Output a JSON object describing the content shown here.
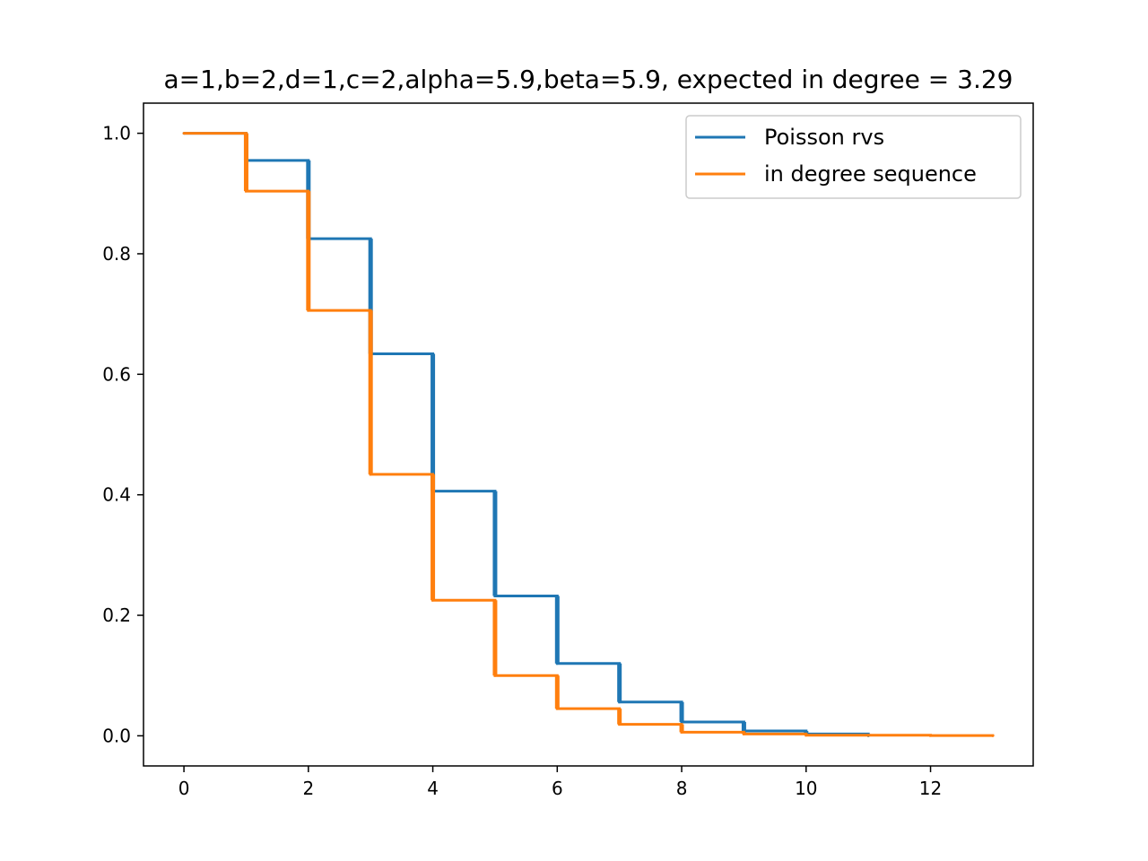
{
  "chart_data": {
    "type": "line",
    "title": "a=1,b=2,d=1,c=2,alpha=5.9,beta=5.9, expected in degree = 3.29",
    "xlabel": "",
    "ylabel": "",
    "xlim": [
      -0.65,
      13.65
    ],
    "ylim": [
      -0.05,
      1.05
    ],
    "x_ticks": [
      0,
      2,
      4,
      6,
      8,
      10,
      12
    ],
    "x_tick_labels": [
      "0",
      "2",
      "4",
      "6",
      "8",
      "10",
      "12"
    ],
    "y_ticks": [
      0.0,
      0.2,
      0.4,
      0.6,
      0.8,
      1.0
    ],
    "y_tick_labels": [
      "0.0",
      "0.2",
      "0.4",
      "0.6",
      "0.8",
      "1.0"
    ],
    "grid": false,
    "legend_position": "top-right",
    "series": [
      {
        "name": "Poisson rvs",
        "color": "#1f77b4",
        "x": [
          0,
          1,
          2,
          3,
          4,
          5,
          6,
          7,
          8,
          9,
          10,
          11
        ],
        "y": [
          1.0,
          0.955,
          0.825,
          0.634,
          0.406,
          0.232,
          0.12,
          0.056,
          0.023,
          0.008,
          0.003,
          0.0
        ]
      },
      {
        "name": "in degree sequence",
        "color": "#ff7f0e",
        "x": [
          0,
          1,
          2,
          3,
          4,
          5,
          6,
          7,
          8,
          9,
          10,
          11,
          12,
          13
        ],
        "y": [
          1.0,
          0.904,
          0.706,
          0.434,
          0.225,
          0.1,
          0.045,
          0.019,
          0.006,
          0.003,
          0.001,
          0.001,
          0.0005,
          0.0
        ]
      }
    ]
  }
}
